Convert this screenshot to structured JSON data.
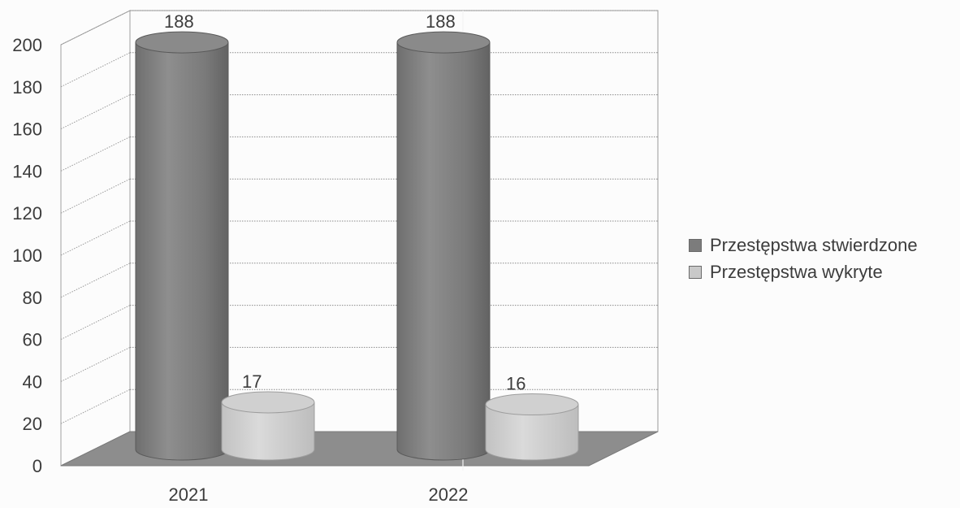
{
  "chart_data": {
    "type": "bar",
    "title": "",
    "xlabel": "",
    "ylabel": "",
    "categories": [
      "2021",
      "2022"
    ],
    "series": [
      {
        "name": "Przestępstwa stwierdzone",
        "values": [
          188,
          188
        ],
        "labels": [
          "188",
          "188"
        ],
        "color": "#7c7c7c"
      },
      {
        "name": "Przestępstwa wykryte",
        "values": [
          17,
          16
        ],
        "labels": [
          "17",
          "16"
        ],
        "color": "#c9c9c9"
      }
    ],
    "ylim": [
      0,
      200
    ],
    "yticks": [
      "0",
      "20",
      "40",
      "60",
      "80",
      "100",
      "120",
      "140",
      "160",
      "180",
      "200"
    ],
    "grid": true,
    "style": "3d-cylinder",
    "legend_position": "right"
  }
}
